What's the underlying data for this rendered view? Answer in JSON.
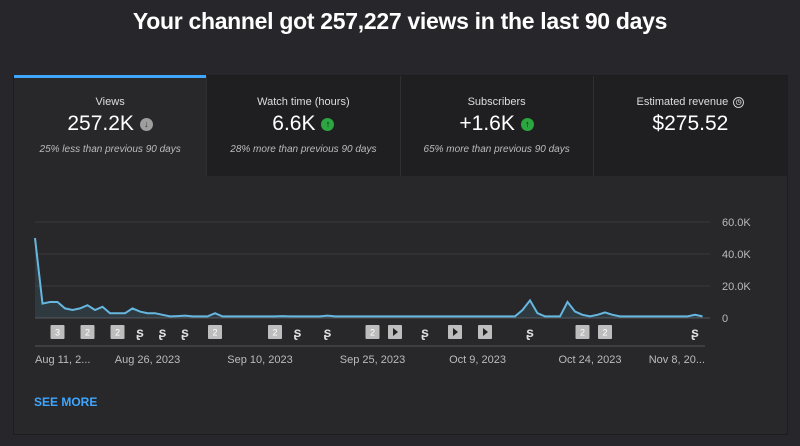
{
  "title": "Your channel got 257,227 views in the last 90 days",
  "tabs": [
    {
      "label": "Views",
      "value": "257.2K",
      "trend": "down",
      "note": "25% less than previous 90 days"
    },
    {
      "label": "Watch time (hours)",
      "value": "6.6K",
      "trend": "up",
      "note": "28% more than previous 90 days"
    },
    {
      "label": "Subscribers",
      "value": "+1.6K",
      "trend": "up",
      "note": "65% more than previous 90 days"
    },
    {
      "label": "Estimated revenue",
      "value": "$275.52",
      "trend": null,
      "note": ""
    }
  ],
  "see_more": "SEE MORE",
  "colors": {
    "line": "#65b7e0",
    "accent": "#3ea6ff",
    "up": "#2ba640"
  },
  "chart_data": {
    "type": "line",
    "series": [
      {
        "name": "Views",
        "values": [
          50,
          9,
          10,
          10,
          6,
          5,
          6,
          8,
          5,
          7,
          3,
          3,
          3,
          6,
          4,
          3,
          3,
          2,
          1,
          1.2,
          1.5,
          1,
          1,
          1,
          3,
          1,
          1,
          1,
          1,
          1,
          1,
          1,
          1,
          1.2,
          1,
          1,
          1,
          1,
          1,
          1.5,
          1,
          1,
          1,
          1,
          1,
          1,
          1,
          1,
          1,
          1,
          1,
          1,
          1,
          1,
          1,
          1,
          1,
          1,
          1,
          1,
          1,
          1,
          1,
          1,
          1,
          5,
          11,
          3,
          1,
          1,
          1,
          10,
          4,
          2,
          1,
          2,
          3.5,
          2,
          1,
          1,
          1,
          1,
          1,
          1,
          1,
          1,
          1,
          1,
          2,
          1
        ]
      }
    ],
    "unit": "K",
    "ylim": [
      0,
      60
    ],
    "yticks": [
      "60.0K",
      "40.0K",
      "20.0K",
      "0"
    ],
    "xticks": [
      "Aug 11, 2...",
      "Aug 26, 2023",
      "Sep 10, 2023",
      "Sep 25, 2023",
      "Oct 9, 2023",
      "Oct 24, 2023",
      "Nov 8, 20..."
    ],
    "xtick_days": [
      0,
      15,
      30,
      45,
      59,
      74,
      89
    ],
    "markers": [
      {
        "type": "video-count",
        "count": "3",
        "day": 3
      },
      {
        "type": "video-count",
        "count": "2",
        "day": 7
      },
      {
        "type": "video-count",
        "count": "2",
        "day": 11
      },
      {
        "type": "short",
        "day": 14
      },
      {
        "type": "short",
        "day": 17
      },
      {
        "type": "short",
        "day": 20
      },
      {
        "type": "video-count",
        "count": "2",
        "day": 24
      },
      {
        "type": "video-count",
        "count": "2",
        "day": 32
      },
      {
        "type": "short",
        "day": 35
      },
      {
        "type": "short",
        "day": 39
      },
      {
        "type": "video-count",
        "count": "2",
        "day": 45
      },
      {
        "type": "video",
        "day": 48
      },
      {
        "type": "short",
        "day": 52
      },
      {
        "type": "video",
        "day": 56
      },
      {
        "type": "video",
        "day": 60
      },
      {
        "type": "short",
        "day": 66
      },
      {
        "type": "video-count",
        "count": "2",
        "day": 73
      },
      {
        "type": "video-count",
        "count": "2",
        "day": 76
      },
      {
        "type": "short",
        "day": 88
      }
    ]
  }
}
